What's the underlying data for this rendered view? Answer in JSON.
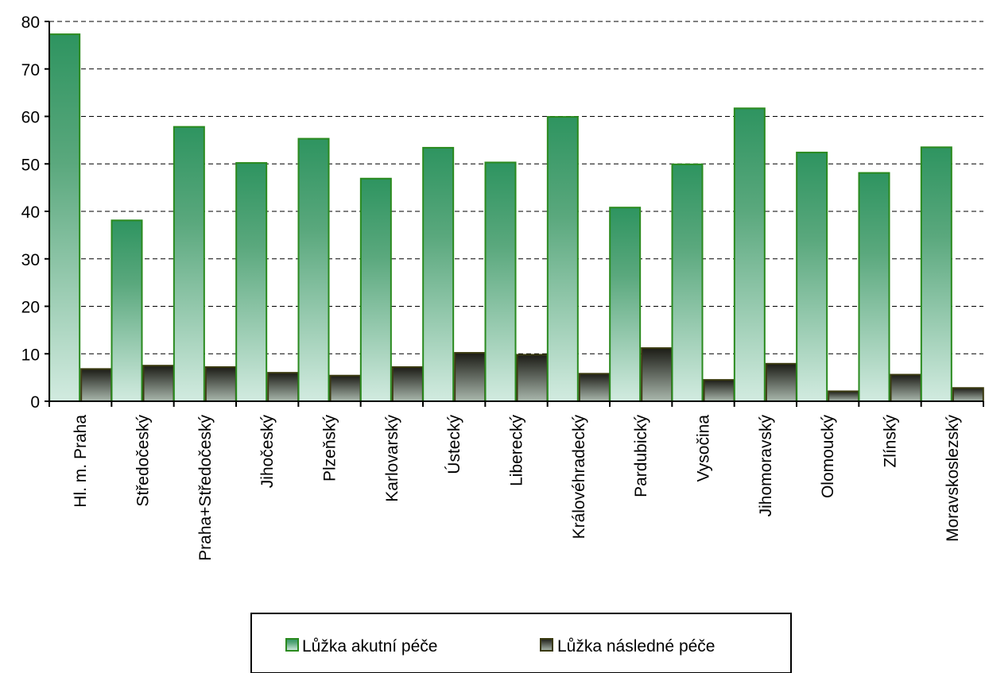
{
  "chart_data": {
    "type": "bar",
    "categories": [
      "Hl. m. Praha",
      "Středočeský",
      "Praha+Středočeský",
      "Jihočeský",
      "Plzeňský",
      "Karlovarský",
      "Ústecký",
      "Liberecký",
      "Královéhradecký",
      "Pardubický",
      "Vysočina",
      "Jihomoravský",
      "Olomoucký",
      "Zlínský",
      "Moravskoslezský"
    ],
    "series": [
      {
        "name": "Lůžka akutní péče",
        "values": [
          77.3,
          38.1,
          57.8,
          50.2,
          55.3,
          46.9,
          53.4,
          50.3,
          59.9,
          40.8,
          49.9,
          61.7,
          52.4,
          48.1,
          53.5
        ]
      },
      {
        "name": "Lůžka následné péče",
        "values": [
          6.8,
          7.5,
          7.2,
          6.0,
          5.4,
          7.2,
          10.2,
          9.8,
          5.8,
          11.2,
          4.5,
          7.9,
          2.1,
          5.6,
          2.8
        ]
      }
    ],
    "ylim": [
      0,
      80
    ],
    "yticks": [
      0,
      10,
      20,
      30,
      40,
      50,
      60,
      70,
      80
    ],
    "grid": "horizontal dashed",
    "legend": "bottom",
    "colors": {
      "acute_top": "#2e9460",
      "acute_bottom": "#d2ebe0",
      "acute_border": "#2a8a1e",
      "followup_top": "#1c1c16",
      "followup_bottom": "#aab8ad",
      "followup_border": "#3a3a10"
    }
  }
}
